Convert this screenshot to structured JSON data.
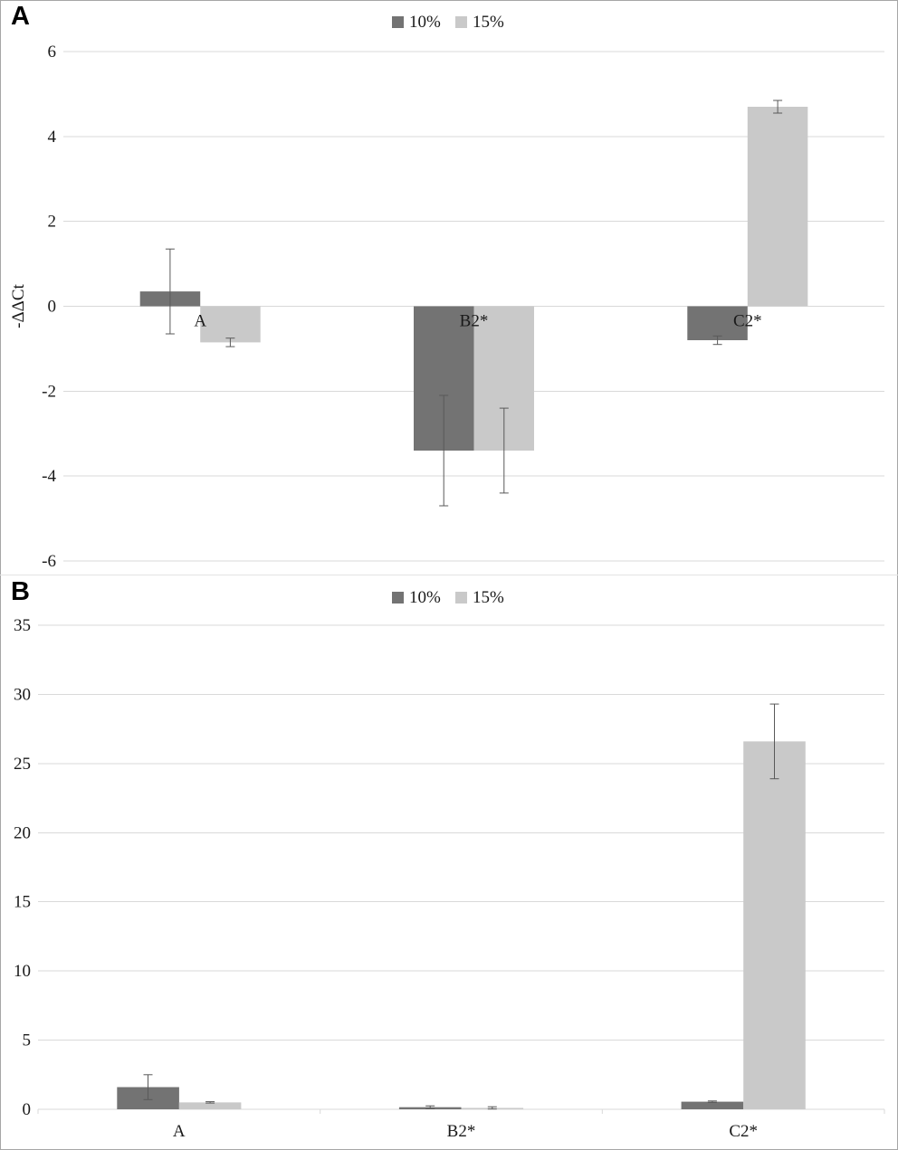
{
  "figure": {
    "panels": [
      {
        "label": "A"
      },
      {
        "label": "B"
      }
    ]
  },
  "style": {
    "background": "#ffffff",
    "gridline_color": "#d9d9d9",
    "error_bar_color": "#595959",
    "text_color": "#1a1a1a",
    "series_colors": {
      "10%": "#737373",
      "15%": "#c9c9c9"
    }
  },
  "chart_data": [
    {
      "type": "bar",
      "panel": "A",
      "title": "",
      "categories": [
        "A",
        "B2*",
        "C2*"
      ],
      "series": [
        {
          "name": "10%",
          "color": "#737373",
          "values": [
            0.35,
            -3.4,
            -0.8
          ],
          "errors": [
            1.0,
            1.3,
            0.1
          ]
        },
        {
          "name": "15%",
          "color": "#c9c9c9",
          "values": [
            -0.85,
            -3.4,
            4.7
          ],
          "errors": [
            0.1,
            1.0,
            0.15
          ]
        }
      ],
      "xlabel": "",
      "ylabel": "-ΔΔCt",
      "ylim": [
        -6,
        6
      ],
      "yticks": [
        -6,
        -4,
        -2,
        0,
        2,
        4,
        6
      ],
      "legend_position": "top-center",
      "grid": true,
      "category_label_position": "zero-line"
    },
    {
      "type": "bar",
      "panel": "B",
      "title": "",
      "categories": [
        "A",
        "B2*",
        "C2*"
      ],
      "series": [
        {
          "name": "10%",
          "color": "#737373",
          "values": [
            1.6,
            0.15,
            0.55
          ],
          "errors": [
            0.9,
            0.1,
            0.05
          ]
        },
        {
          "name": "15%",
          "color": "#c9c9c9",
          "values": [
            0.5,
            0.1,
            26.6
          ],
          "errors": [
            0.05,
            0.08,
            2.7
          ]
        }
      ],
      "xlabel": "",
      "ylabel": "",
      "ylim": [
        0,
        35
      ],
      "yticks": [
        0,
        5,
        10,
        15,
        20,
        25,
        30,
        35
      ],
      "legend_position": "top-center",
      "grid": true,
      "category_label_position": "below-axis"
    }
  ]
}
